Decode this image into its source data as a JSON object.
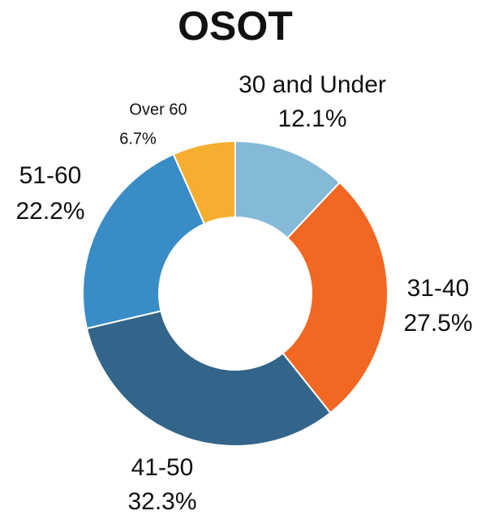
{
  "chart_data": {
    "type": "donut",
    "title": "OSOT",
    "categories": [
      "30 and Under",
      "31-40",
      "41-50",
      "51-60",
      "Over 60"
    ],
    "values": [
      12.1,
      27.5,
      32.3,
      22.2,
      6.7
    ],
    "value_labels": [
      "12.1%",
      "27.5%",
      "32.3%",
      "22.2%",
      "6.7%"
    ],
    "colors": [
      "#85b9d8",
      "#f26722",
      "#336489",
      "#3a8cc7",
      "#f5ae30"
    ]
  }
}
